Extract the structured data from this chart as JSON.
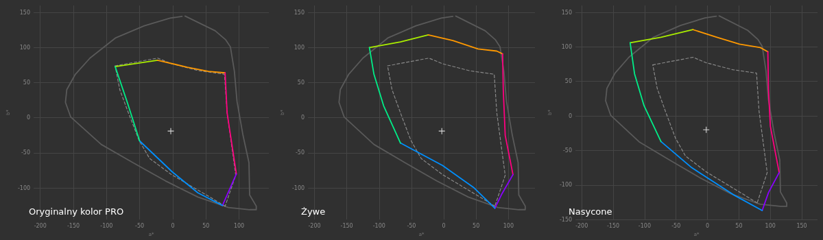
{
  "chart_data": [
    {
      "type": "line",
      "title": "Oryginalny kolor PRO",
      "xlabel": "a*",
      "ylabel": "b*",
      "xlim": [
        -210,
        145
      ],
      "ylim": [
        -145,
        160
      ],
      "xticks": [
        -200,
        -150,
        -100,
        -50,
        0,
        50,
        100
      ],
      "yticks": [
        -100,
        -50,
        0,
        50,
        100,
        150
      ],
      "grid": true,
      "marker": "none",
      "line_style": "solid",
      "series": [
        {
          "color": "#5a5a5a",
          "x": [
            18.5,
            64,
            80,
            87,
            93,
            97,
            106,
            115,
            116,
            126,
            126,
            116,
            84,
            38,
            -11,
            -60,
            -108,
            -154,
            -162,
            -160,
            -147,
            -125,
            -86,
            -43,
            -4,
            14
          ],
          "values": [
            145,
            124,
            111,
            101,
            66,
            23,
            -25,
            -64,
            -110,
            -126,
            -131,
            -131,
            -128,
            -113,
            -90,
            -64,
            -38,
            1,
            22,
            40,
            62,
            85,
            114,
            131,
            142,
            144.5
          ]
        },
        {
          "color": "#8a8a8a",
          "line_style": "dashed",
          "x": [
            -87,
            -23,
            -2,
            40,
            78,
            82,
            95,
            79
          ],
          "values": [
            74,
            85,
            77,
            67,
            62,
            7,
            -82,
            -126
          ]
        },
        {
          "color": "#8a8a8a",
          "line_style": "dashed",
          "x": [
            79,
            56,
            -2,
            -35,
            -51,
            -67,
            -80,
            -87
          ],
          "values": [
            -126,
            -113,
            -81,
            -58,
            -32,
            7,
            40,
            74
          ]
        },
        {
          "color": "#aaee00",
          "x": [
            -87,
            -23
          ],
          "values": [
            73,
            82
          ]
        },
        {
          "color": "#ff9900",
          "x": [
            -23,
            22,
            54,
            79
          ],
          "values": [
            82,
            72,
            66,
            64
          ]
        },
        {
          "color": "#ff0080",
          "x": [
            79,
            82,
            96
          ],
          "values": [
            64,
            7,
            -80
          ]
        },
        {
          "color": "#8a00ff",
          "x": [
            96,
            75
          ],
          "values": [
            -80,
            -125
          ]
        },
        {
          "color": "#0090ff",
          "x": [
            75,
            38,
            -1,
            -50
          ],
          "values": [
            -125,
            -107,
            -77,
            -33
          ]
        },
        {
          "color": "#00ee88",
          "x": [
            -50,
            -69,
            -87
          ],
          "values": [
            -33,
            23,
            73
          ]
        },
        {
          "type": "scatter",
          "marker": "cross",
          "color": "#ffffff",
          "x": [
            -3
          ],
          "values": [
            -19
          ]
        }
      ]
    },
    {
      "type": "line",
      "title": "Żywe",
      "xlabel": "a*",
      "ylabel": "b*",
      "xlim": [
        -210,
        141
      ],
      "ylim": [
        -145,
        160
      ],
      "xticks": [
        -200,
        -150,
        -100,
        -50,
        0,
        50,
        100
      ],
      "yticks": [
        -100,
        -50,
        0,
        50,
        100,
        150
      ],
      "grid": true,
      "marker": "none",
      "line_style": "solid",
      "series": [
        {
          "color": "#5a5a5a",
          "x": [
            18.5,
            64,
            80,
            87,
            93,
            97,
            106,
            115,
            116,
            126,
            126,
            116,
            84,
            38,
            -11,
            -60,
            -108,
            -154,
            -162,
            -160,
            -147,
            -125,
            -86,
            -43,
            -4,
            14
          ],
          "values": [
            145,
            124,
            111,
            101,
            66,
            23,
            -25,
            -64,
            -110,
            -126,
            -131,
            -131,
            -128,
            -113,
            -90,
            -64,
            -38,
            1,
            22,
            40,
            62,
            85,
            114,
            131,
            142,
            144.5
          ]
        },
        {
          "color": "#8a8a8a",
          "line_style": "dashed",
          "x": [
            -87,
            -23,
            -2,
            40,
            78,
            82,
            95,
            79
          ],
          "values": [
            74,
            85,
            77,
            67,
            62,
            7,
            -82,
            -126
          ]
        },
        {
          "color": "#8a8a8a",
          "line_style": "dashed",
          "x": [
            79,
            56,
            -2,
            -35,
            -51,
            -67,
            -80,
            -87
          ],
          "values": [
            -126,
            -113,
            -81,
            -58,
            -32,
            7,
            40,
            74
          ]
        },
        {
          "color": "#aaee00",
          "x": [
            -115,
            -67,
            -24
          ],
          "values": [
            100,
            108,
            118
          ]
        },
        {
          "color": "#ff9900",
          "x": [
            -24,
            14,
            53,
            82,
            91
          ],
          "values": [
            118,
            110,
            98,
            95,
            91
          ]
        },
        {
          "color": "#ff0080",
          "x": [
            91,
            92,
            95,
            107
          ],
          "values": [
            91,
            40,
            -25,
            -81
          ]
        },
        {
          "color": "#8a00ff",
          "x": [
            107,
            89,
            79
          ],
          "values": [
            -81,
            -110,
            -129
          ]
        },
        {
          "color": "#0090ff",
          "x": [
            79,
            47,
            -2,
            -67
          ],
          "values": [
            -129,
            -100,
            -68,
            -36
          ]
        },
        {
          "color": "#00ee88",
          "x": [
            -67,
            -93,
            -108,
            -115
          ],
          "values": [
            -36,
            17,
            62,
            100
          ]
        },
        {
          "type": "scatter",
          "marker": "cross",
          "color": "#ffffff",
          "x": [
            -3
          ],
          "values": [
            -19
          ]
        }
      ]
    },
    {
      "type": "line",
      "title": "Nasycone",
      "xlabel": "a*",
      "ylabel": "b*",
      "xlim": [
        -210,
        175
      ],
      "ylim": [
        -150,
        160
      ],
      "xticks": [
        -200,
        -150,
        -100,
        -50,
        0,
        50,
        100,
        150
      ],
      "yticks": [
        -150,
        -100,
        -50,
        0,
        50,
        100,
        150
      ],
      "grid": true,
      "marker": "none",
      "line_style": "solid",
      "series": [
        {
          "color": "#5a5a5a",
          "x": [
            18.5,
            64,
            80,
            87,
            93,
            97,
            106,
            115,
            116,
            126,
            126,
            116,
            84,
            38,
            -11,
            -60,
            -108,
            -154,
            -162,
            -160,
            -147,
            -125,
            -86,
            -43,
            -4,
            14
          ],
          "values": [
            145,
            124,
            111,
            101,
            66,
            23,
            -25,
            -64,
            -110,
            -126,
            -131,
            -131,
            -128,
            -113,
            -90,
            -64,
            -38,
            1,
            22,
            40,
            62,
            85,
            114,
            131,
            142,
            144.5
          ]
        },
        {
          "color": "#8a8a8a",
          "line_style": "dashed",
          "x": [
            -87,
            -23,
            -2,
            40,
            78,
            82,
            95,
            79
          ],
          "values": [
            74,
            85,
            77,
            67,
            62,
            7,
            -82,
            -126
          ]
        },
        {
          "color": "#8a8a8a",
          "line_style": "dashed",
          "x": [
            79,
            56,
            -2,
            -35,
            -51,
            -67,
            -80,
            -87
          ],
          "values": [
            -126,
            -113,
            -81,
            -58,
            -32,
            7,
            40,
            74
          ]
        },
        {
          "color": "#aaee00",
          "x": [
            -123,
            -74,
            -23
          ],
          "values": [
            106,
            114,
            125
          ]
        },
        {
          "color": "#ff9900",
          "x": [
            -23,
            15,
            51,
            84,
            96
          ],
          "values": [
            125,
            114,
            104,
            99,
            93
          ]
        },
        {
          "color": "#ff0080",
          "x": [
            96,
            97,
            100,
            114
          ],
          "values": [
            93,
            38,
            -15,
            -82
          ]
        },
        {
          "color": "#8a00ff",
          "x": [
            114,
            97,
            87
          ],
          "values": [
            -82,
            -111,
            -137
          ]
        },
        {
          "color": "#0090ff",
          "x": [
            87,
            41,
            -25,
            -74
          ],
          "values": [
            -137,
            -114,
            -75,
            -37
          ]
        },
        {
          "color": "#00ee88",
          "x": [
            -74,
            -101,
            -116,
            -123
          ],
          "values": [
            -37,
            15,
            61,
            106
          ]
        },
        {
          "type": "scatter",
          "marker": "cross",
          "color": "#ffffff",
          "x": [
            -2
          ],
          "values": [
            -20
          ]
        }
      ]
    }
  ]
}
